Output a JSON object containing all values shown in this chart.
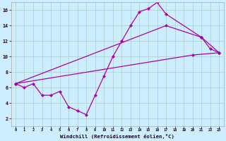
{
  "background_color": "#cceeff",
  "grid_color": "#aacccc",
  "line_color": "#aa00aa",
  "marker_color": "#aa00aa",
  "xlabel": "Windchill (Refroidissement éolien,°C)",
  "xlim": [
    -0.5,
    23.5
  ],
  "ylim": [
    1,
    17
  ],
  "yticks": [
    2,
    4,
    6,
    8,
    10,
    12,
    14,
    16
  ],
  "xticks": [
    0,
    1,
    2,
    3,
    4,
    5,
    6,
    7,
    8,
    9,
    10,
    11,
    12,
    13,
    14,
    15,
    16,
    17,
    18,
    19,
    20,
    21,
    22,
    23
  ],
  "series1_x": [
    0,
    1,
    2,
    3,
    4,
    5,
    6,
    7,
    8,
    9,
    10,
    11,
    12,
    13,
    14,
    15,
    16,
    17,
    21,
    22,
    23
  ],
  "series1_y": [
    6.5,
    6.0,
    6.5,
    5.0,
    5.0,
    5.5,
    3.5,
    3.0,
    2.5,
    5.0,
    7.5,
    10.0,
    12.0,
    14.0,
    15.8,
    16.2,
    17.0,
    15.5,
    12.5,
    11.0,
    10.5
  ],
  "series2_x": [
    0,
    17,
    21,
    23
  ],
  "series2_y": [
    6.5,
    14.0,
    12.5,
    10.5
  ],
  "series3_x": [
    0,
    20,
    23
  ],
  "series3_y": [
    6.5,
    10.2,
    10.5
  ]
}
